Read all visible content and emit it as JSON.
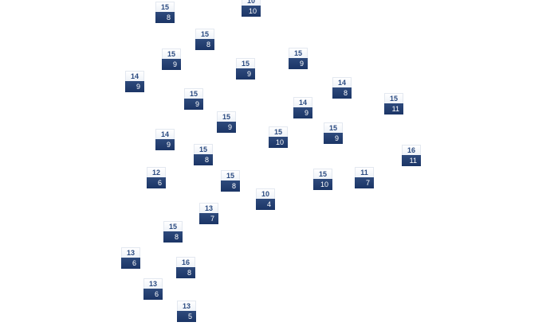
{
  "markers": [
    {
      "top": 15,
      "bottom": 8
    },
    {
      "top": 10,
      "bottom": 10
    },
    {
      "top": 15,
      "bottom": 8
    },
    {
      "top": 15,
      "bottom": 9
    },
    {
      "top": 15,
      "bottom": 9
    },
    {
      "top": 15,
      "bottom": 9
    },
    {
      "top": 14,
      "bottom": 9
    },
    {
      "top": 14,
      "bottom": 8
    },
    {
      "top": 15,
      "bottom": 11
    },
    {
      "top": 15,
      "bottom": 9
    },
    {
      "top": 14,
      "bottom": 9
    },
    {
      "top": 15,
      "bottom": 9
    },
    {
      "top": 14,
      "bottom": 9
    },
    {
      "top": 15,
      "bottom": 10
    },
    {
      "top": 15,
      "bottom": 9
    },
    {
      "top": 15,
      "bottom": 8
    },
    {
      "top": 16,
      "bottom": 11
    },
    {
      "top": 12,
      "bottom": 6
    },
    {
      "top": 15,
      "bottom": 8
    },
    {
      "top": 15,
      "bottom": 10
    },
    {
      "top": 11,
      "bottom": 7
    },
    {
      "top": 10,
      "bottom": 4
    },
    {
      "top": 13,
      "bottom": 7
    },
    {
      "top": 15,
      "bottom": 8
    },
    {
      "top": 13,
      "bottom": 6
    },
    {
      "top": 16,
      "bottom": 8
    },
    {
      "top": 13,
      "bottom": 6
    },
    {
      "top": 13,
      "bottom": 5
    }
  ]
}
